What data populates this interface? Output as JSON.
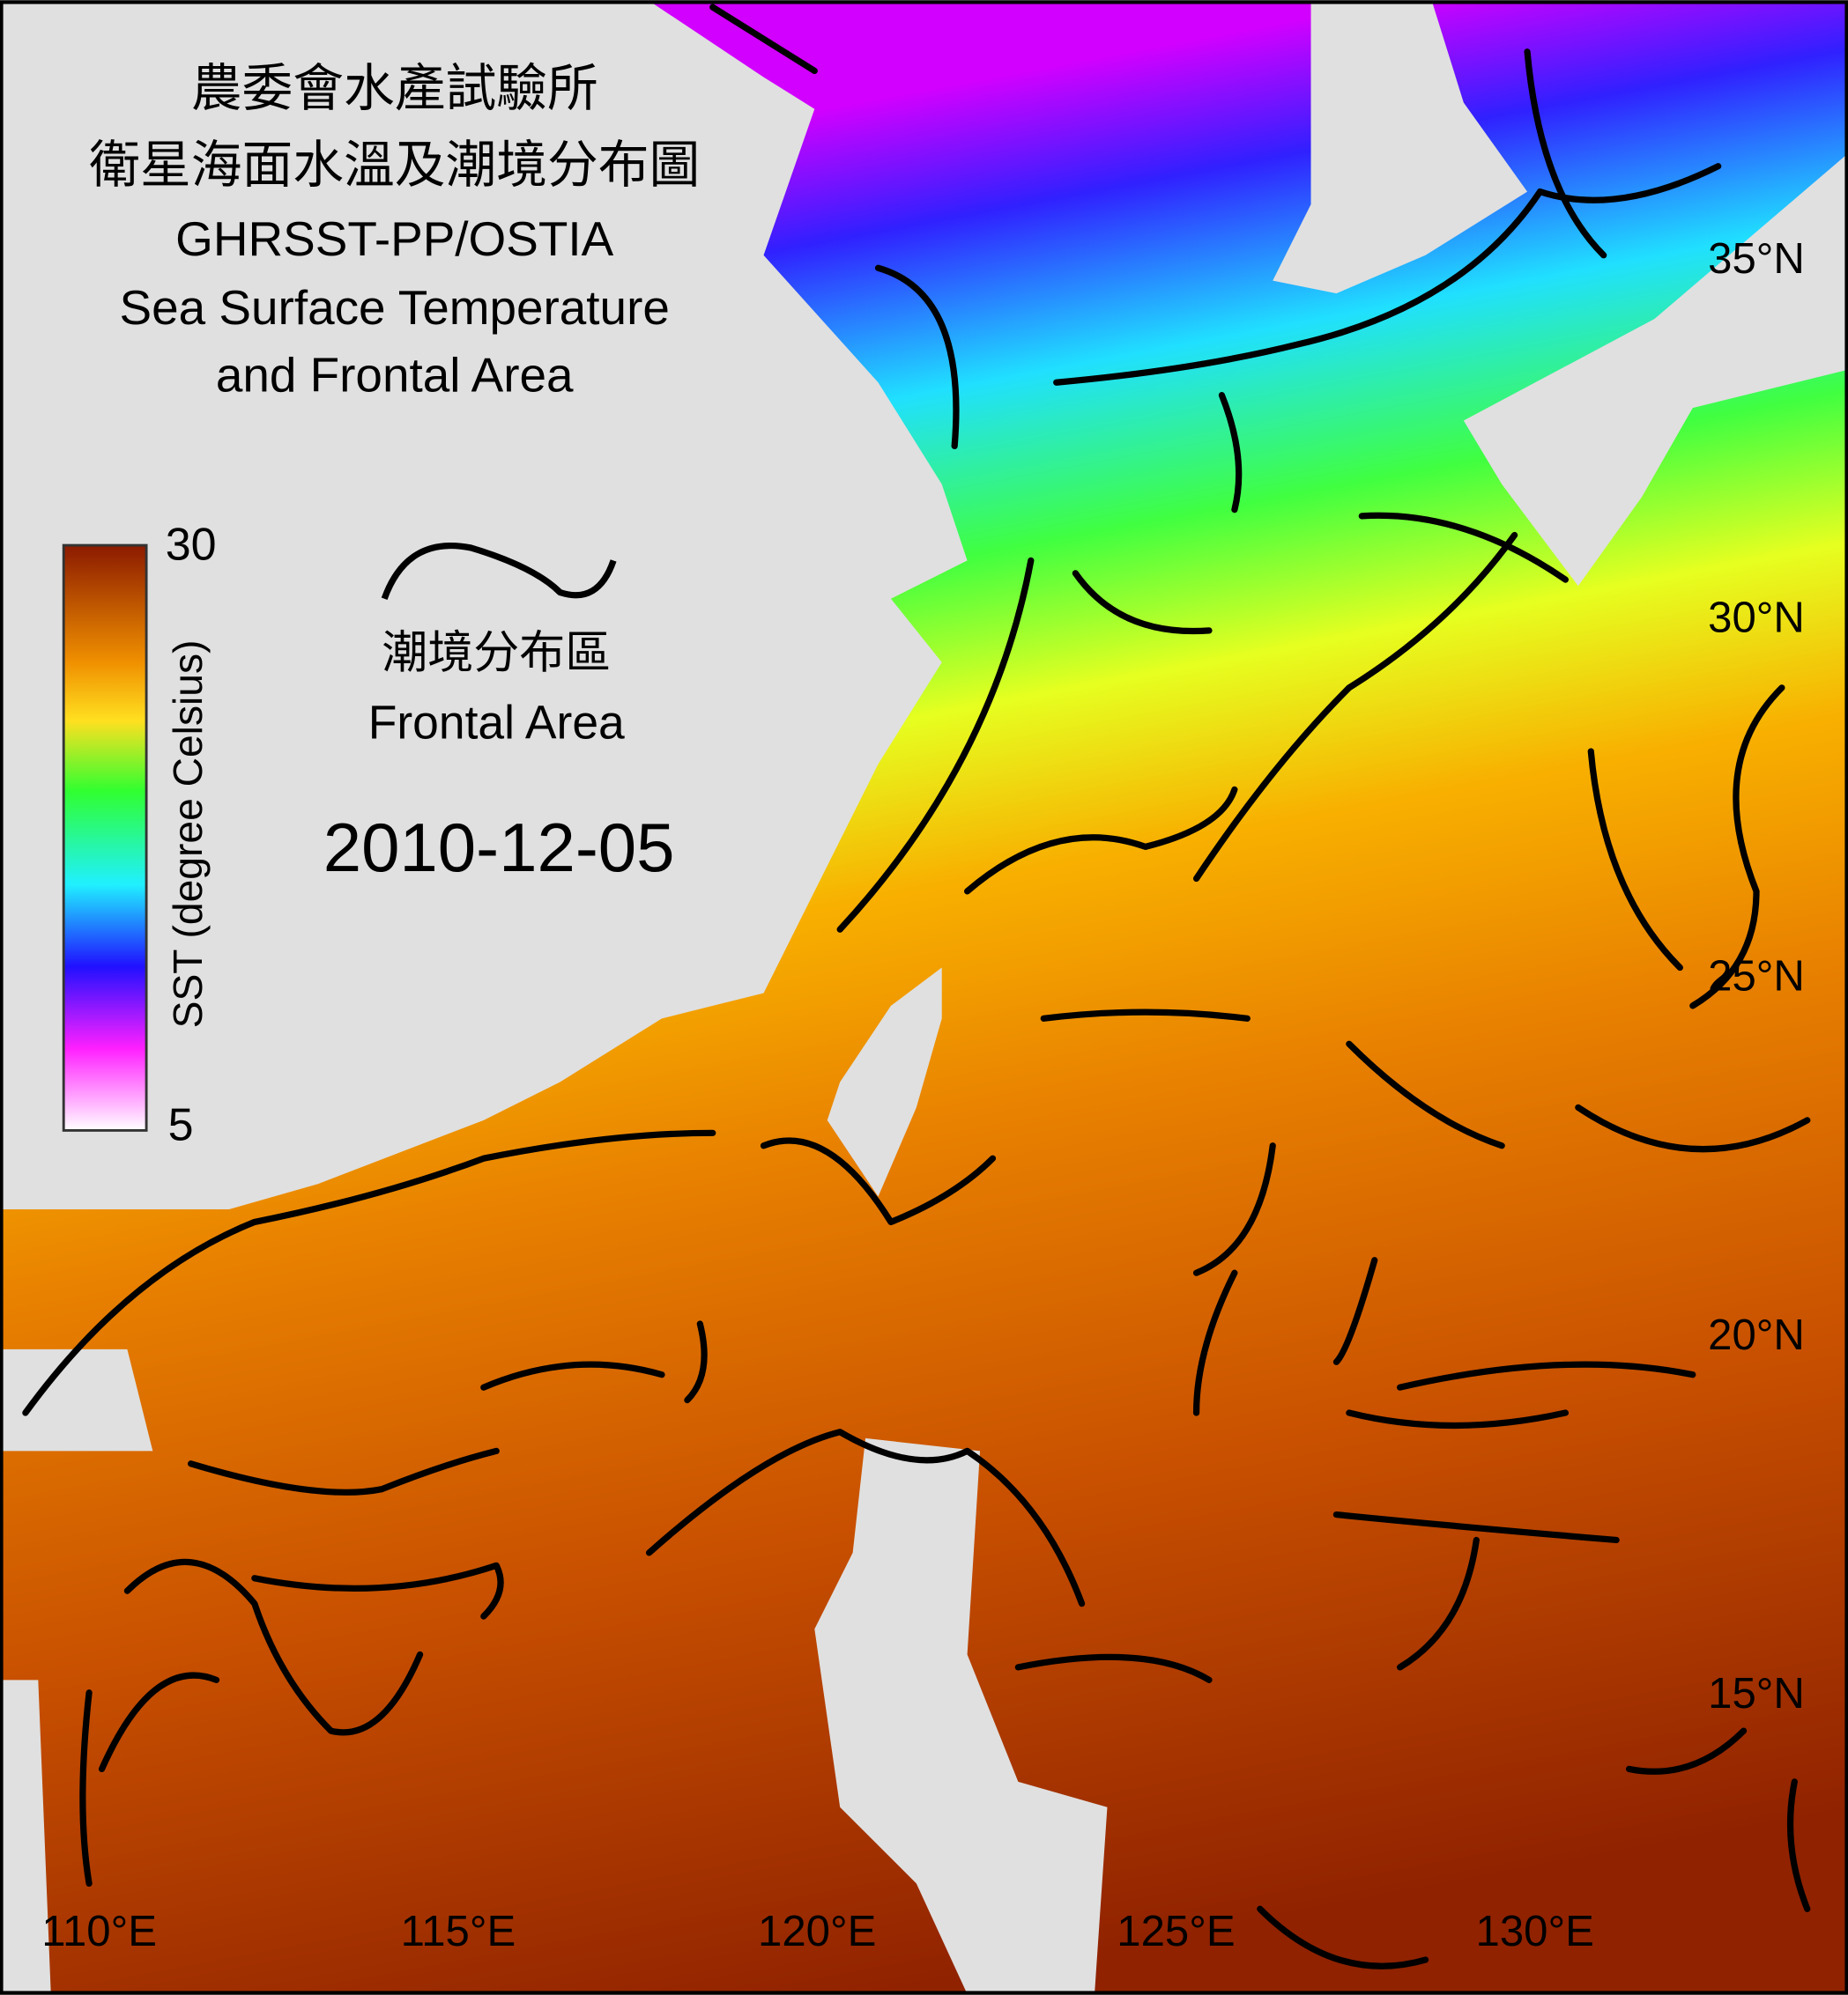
{
  "header": {
    "title_lines": [
      "農委會水產試驗所",
      "衛星海面水溫及潮境分布圖",
      "GHRSST-PP/OSTIA",
      "Sea Surface Temperature",
      "and Frontal Area"
    ]
  },
  "colorbar": {
    "max": 30,
    "min": 5,
    "label": "SST (degree Celsius)"
  },
  "legend": {
    "label_zh": "潮境分布區",
    "label_en": "Frontal Area"
  },
  "date": "2010-12-05",
  "lat_labels": [
    "35°N",
    "30°N",
    "25°N",
    "20°N",
    "15°N"
  ],
  "lon_labels": [
    "110°E",
    "115°E",
    "120°E",
    "125°E",
    "130°E"
  ]
}
